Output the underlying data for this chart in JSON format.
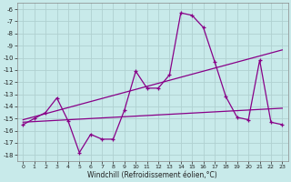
{
  "xlabel": "Windchill (Refroidissement éolien,°C)",
  "background_color": "#c8eaea",
  "grid_color": "#b0d0d0",
  "line_color": "#880088",
  "x": [
    0,
    1,
    2,
    3,
    4,
    5,
    6,
    7,
    8,
    9,
    10,
    11,
    12,
    13,
    14,
    15,
    16,
    17,
    18,
    19,
    20,
    21,
    22,
    23
  ],
  "y_windchill": [
    -15.5,
    -15.0,
    -14.5,
    -13.3,
    -15.2,
    -17.8,
    -16.3,
    -16.7,
    -16.7,
    -14.3,
    -11.1,
    -12.5,
    -12.5,
    -11.4,
    -6.3,
    -6.5,
    -7.5,
    -10.3,
    -13.2,
    -14.9,
    -15.1,
    -10.2,
    -15.3,
    -15.5
  ],
  "y_trend_up": [
    -15.1,
    -14.85,
    -14.6,
    -14.35,
    -14.1,
    -13.85,
    -13.6,
    -13.35,
    -13.1,
    -12.85,
    -12.6,
    -12.35,
    -12.1,
    -11.85,
    -11.6,
    -11.35,
    -11.1,
    -10.85,
    -10.6,
    -10.35,
    -10.1,
    -9.85,
    -9.6,
    -9.35
  ],
  "y_trend_flat": [
    -15.3,
    -15.25,
    -15.2,
    -15.15,
    -15.1,
    -15.05,
    -15.0,
    -14.95,
    -14.9,
    -14.85,
    -14.8,
    -14.75,
    -14.7,
    -14.65,
    -14.6,
    -14.55,
    -14.5,
    -14.45,
    -14.4,
    -14.35,
    -14.3,
    -14.25,
    -14.2,
    -14.15
  ],
  "ylim": [
    -18.5,
    -5.5
  ],
  "yticks": [
    -6,
    -7,
    -8,
    -9,
    -10,
    -11,
    -12,
    -13,
    -14,
    -15,
    -16,
    -17,
    -18
  ],
  "xlim": [
    -0.5,
    23.5
  ],
  "xticks": [
    0,
    1,
    2,
    3,
    4,
    5,
    6,
    7,
    8,
    9,
    10,
    11,
    12,
    13,
    14,
    15,
    16,
    17,
    18,
    19,
    20,
    21,
    22,
    23
  ]
}
